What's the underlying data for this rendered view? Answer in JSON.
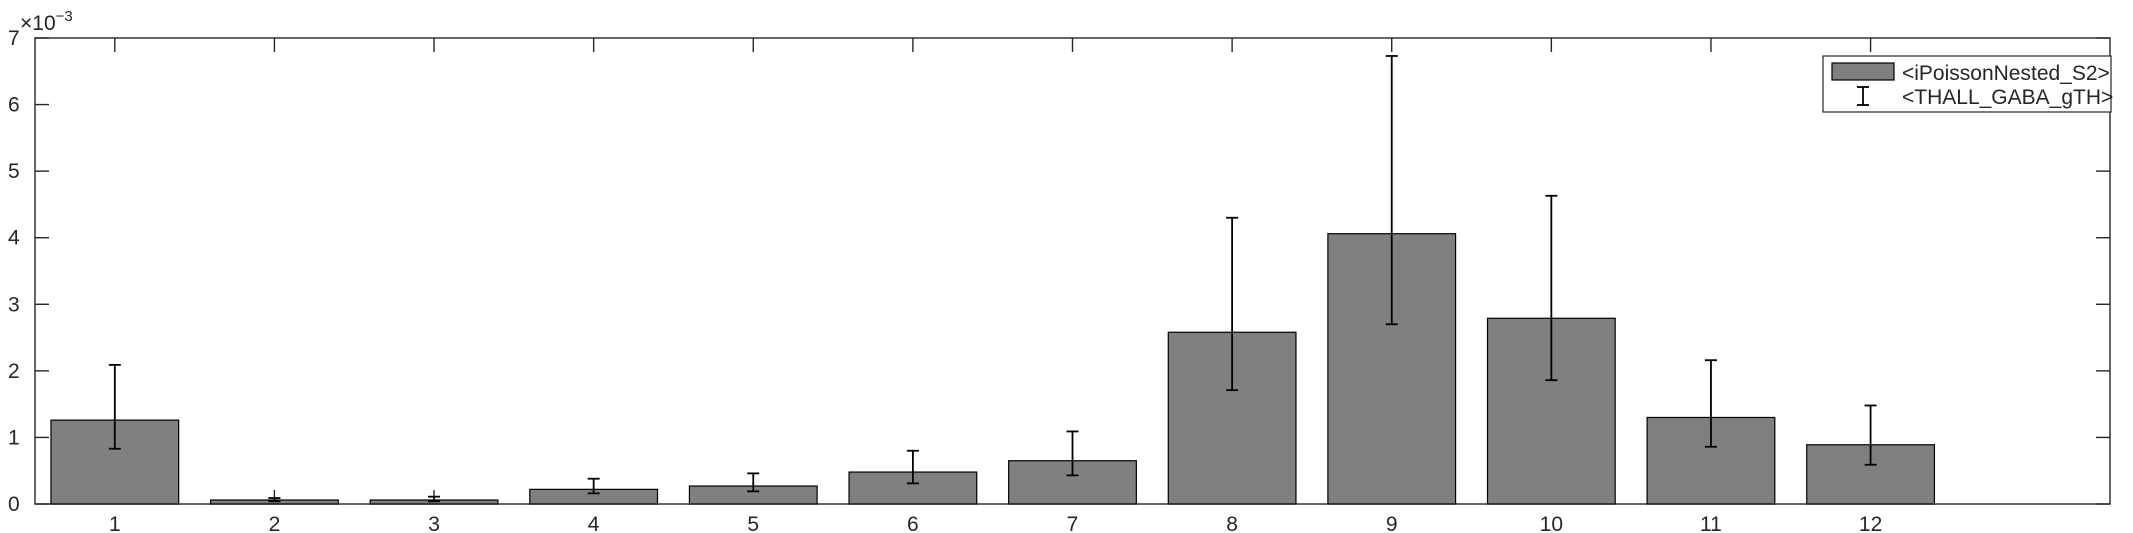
{
  "chart_data": {
    "type": "bar",
    "categories": [
      "1",
      "2",
      "3",
      "4",
      "5",
      "6",
      "7",
      "8",
      "9",
      "10",
      "11",
      "12"
    ],
    "series": [
      {
        "name": "<iPoissonNested_S2>",
        "values": [
          0.00126,
          6e-05,
          6e-05,
          0.00022,
          0.00027,
          0.00048,
          0.00065,
          0.00258,
          0.00406,
          0.00279,
          0.0013,
          0.00089
        ],
        "color": "#808080"
      }
    ],
    "error_bars": {
      "name": "<THALL_GABA_gTH>",
      "lower": [
        0.00083,
        4e-05,
        4e-05,
        0.00016,
        0.00019,
        0.00031,
        0.00043,
        0.00171,
        0.0027,
        0.00186,
        0.00086,
        0.00059
      ],
      "upper": [
        0.00209,
        9e-05,
        0.00011,
        0.00038,
        0.00046,
        0.0008,
        0.00109,
        0.0043,
        0.00673,
        0.00463,
        0.00216,
        0.00148
      ]
    },
    "xlim": [
      0.5,
      13.5
    ],
    "ylim": [
      0,
      0.007
    ],
    "yticks": [
      0,
      1,
      2,
      3,
      4,
      5,
      6,
      7
    ],
    "y_exponent_label": "×10",
    "y_exponent": "−3",
    "xlabel": "",
    "ylabel": "",
    "title": "",
    "grid": false,
    "legend_position": "top-right",
    "bar_color": "#808080",
    "edge_color": "#000000"
  }
}
